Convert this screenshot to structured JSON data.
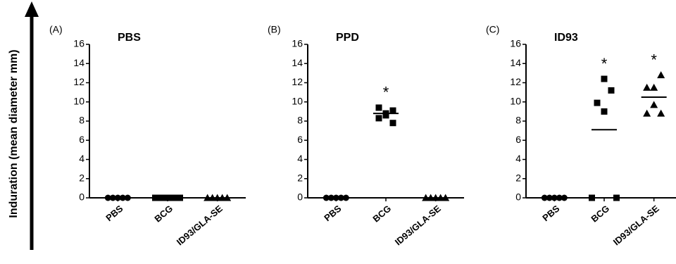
{
  "ylabel": "Induration (mean diameter mm)",
  "chart_data": [
    {
      "type": "dotplot",
      "label": "(A)",
      "title": "PBS",
      "categories": [
        "PBS",
        "BCG",
        "ID93/GLA-SE"
      ],
      "markers": [
        "circle",
        "square",
        "triangle"
      ],
      "values": [
        [
          0,
          0,
          0,
          0,
          0
        ],
        [
          0,
          0,
          0,
          0,
          0,
          0
        ],
        [
          0,
          0,
          0,
          0,
          0
        ]
      ],
      "means": [
        0,
        0,
        0
      ],
      "annotations": [
        null,
        null,
        null
      ],
      "ylim": [
        0,
        16
      ],
      "yticks": [
        0,
        2,
        4,
        6,
        8,
        10,
        12,
        14,
        16
      ],
      "color": "#000000"
    },
    {
      "type": "dotplot",
      "label": "(B)",
      "title": "PPD",
      "categories": [
        "PBS",
        "BCG",
        "ID93/GLA-SE"
      ],
      "markers": [
        "circle",
        "square",
        "triangle"
      ],
      "values": [
        [
          0,
          0,
          0,
          0,
          0
        ],
        [
          9.4,
          8.6,
          7.8,
          8.3,
          8.8,
          9.1
        ],
        [
          0,
          0,
          0,
          0,
          0
        ]
      ],
      "means": [
        0,
        8.8,
        0
      ],
      "annotations": [
        null,
        "*",
        null
      ],
      "ylim": [
        0,
        16
      ],
      "yticks": [
        0,
        2,
        4,
        6,
        8,
        10,
        12,
        14,
        16
      ],
      "color": "#000000"
    },
    {
      "type": "dotplot",
      "label": "(C)",
      "title": "ID93",
      "categories": [
        "PBS",
        "BCG",
        "ID93/GLA-SE"
      ],
      "markers": [
        "circle",
        "square",
        "triangle"
      ],
      "values": [
        [
          0,
          0,
          0,
          0,
          0
        ],
        [
          0,
          12.4,
          11.2,
          9.9,
          9.0,
          0
        ],
        [
          8.8,
          11.5,
          12.8,
          11.5,
          9.7,
          8.8
        ]
      ],
      "means": [
        0,
        7.1,
        10.5
      ],
      "annotations": [
        null,
        "*",
        "*"
      ],
      "ylim": [
        0,
        16
      ],
      "yticks": [
        0,
        2,
        4,
        6,
        8,
        10,
        12,
        14,
        16
      ],
      "color": "#000000"
    }
  ]
}
